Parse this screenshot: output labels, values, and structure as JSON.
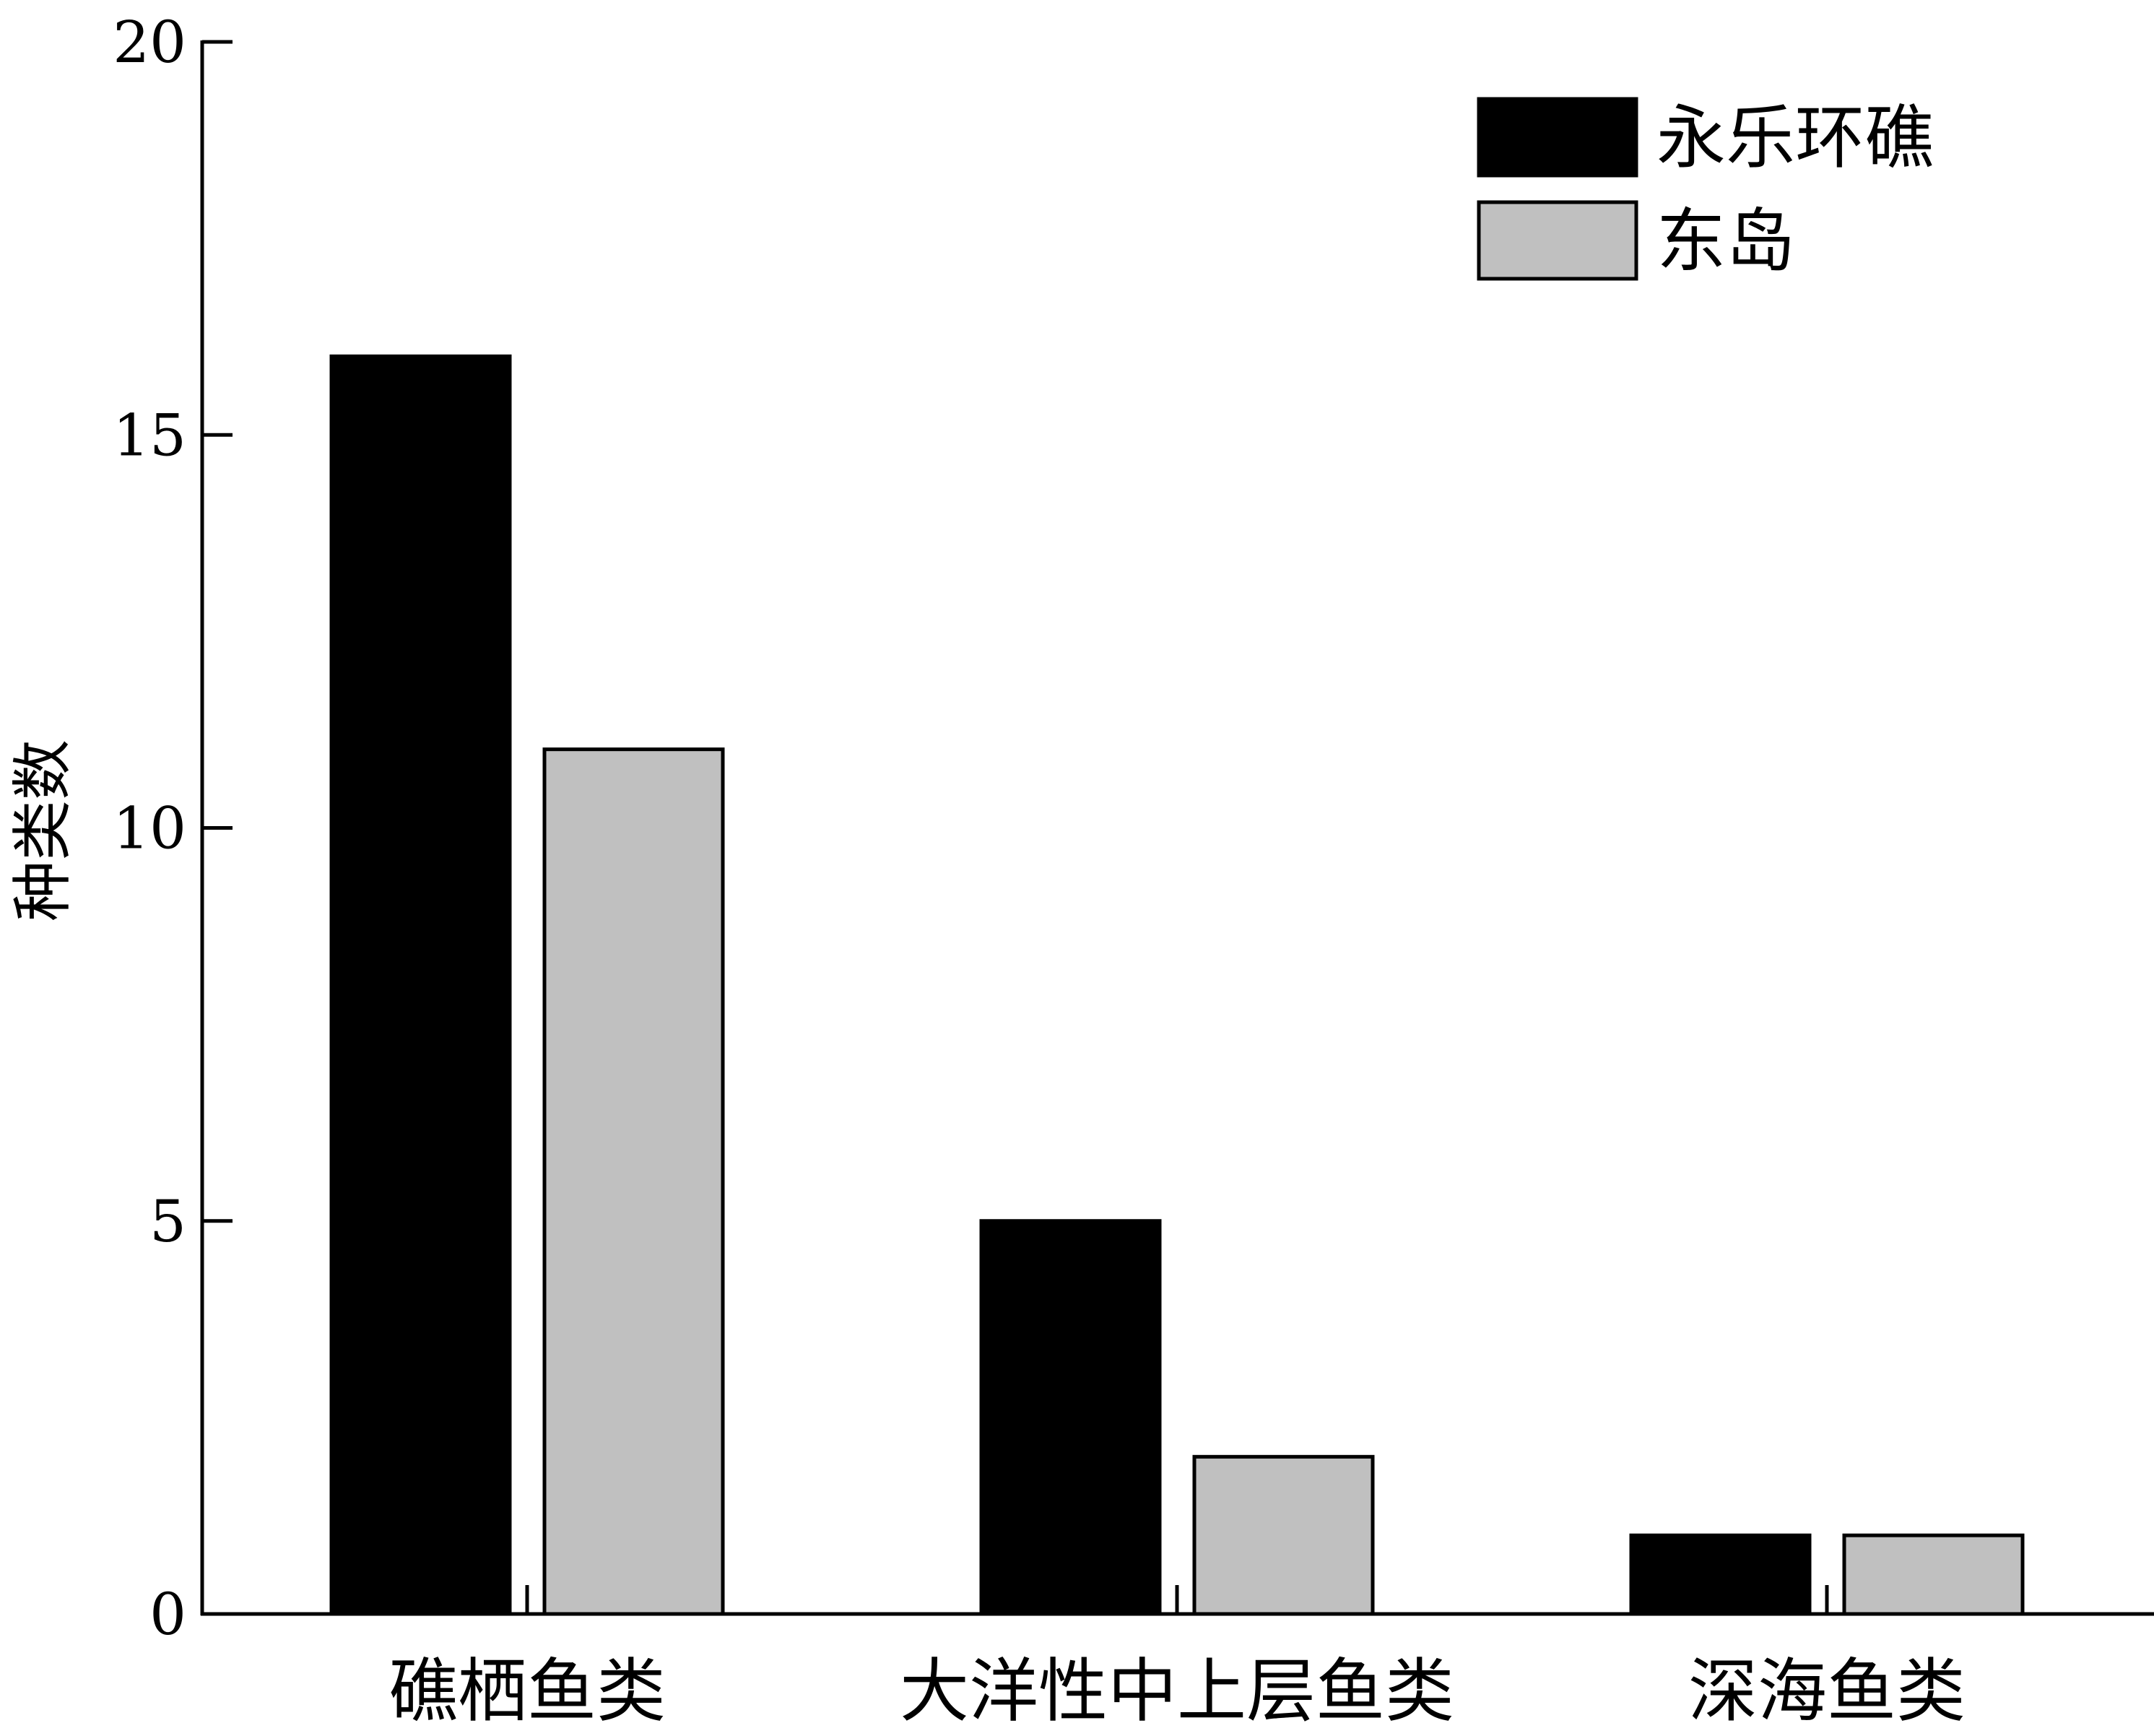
{
  "chart_data": {
    "type": "bar",
    "title": "",
    "xlabel": "",
    "ylabel": "种类数",
    "categories": [
      "礁栖鱼类",
      "大洋性中上层鱼类",
      "深海鱼类"
    ],
    "series": [
      {
        "name": "永乐环礁",
        "values": [
          16,
          5,
          1
        ],
        "color": "#000000"
      },
      {
        "name": "东岛",
        "values": [
          11,
          2,
          1
        ],
        "color": "#c0c0c0"
      }
    ],
    "ylim": [
      0,
      20
    ],
    "yticks": [
      0,
      5,
      10,
      15,
      20
    ],
    "grid": false,
    "legend_position": "top-right"
  }
}
